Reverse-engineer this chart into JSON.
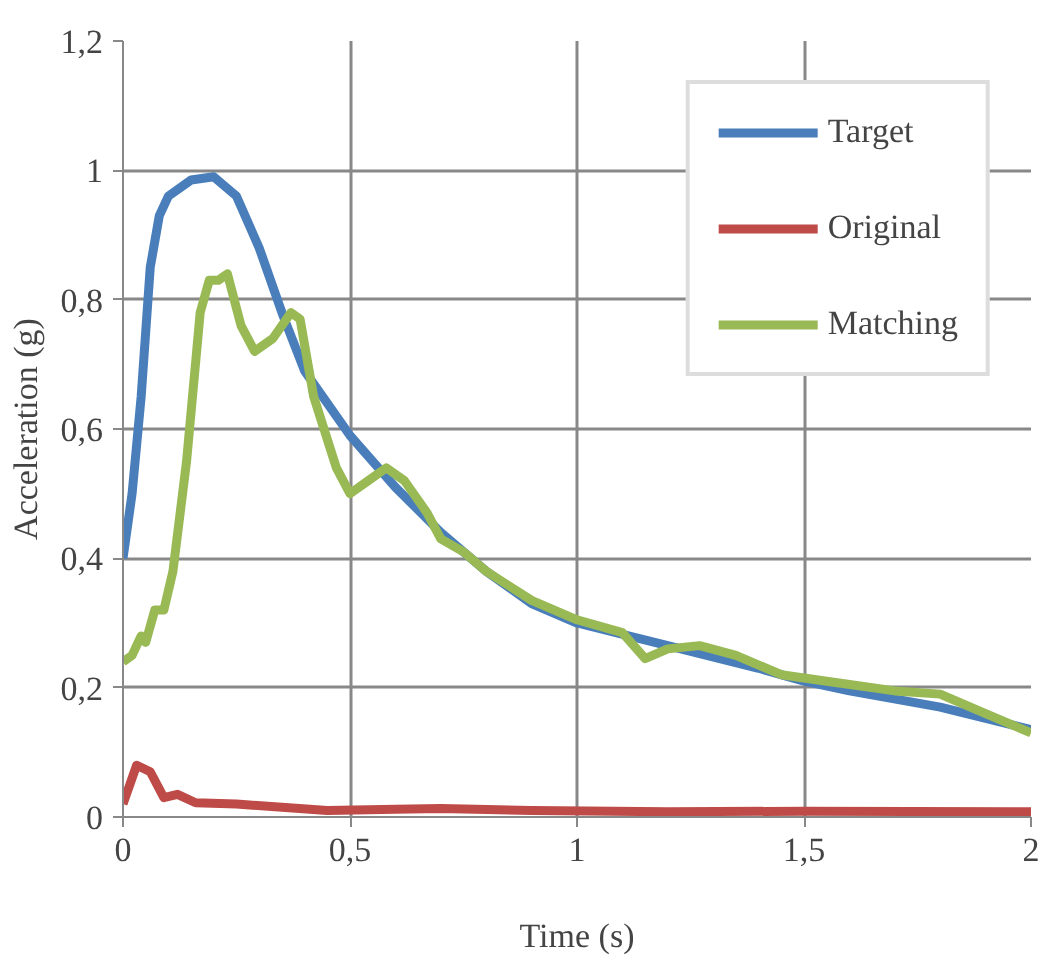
{
  "chart_data": {
    "type": "line",
    "xlabel": "Time (s)",
    "ylabel": "Acceleration (g)",
    "xlim": [
      0,
      2
    ],
    "ylim": [
      0,
      1.2
    ],
    "xticks": [
      {
        "value": 0,
        "label": "0"
      },
      {
        "value": 0.5,
        "label": "0,5"
      },
      {
        "value": 1,
        "label": "1"
      },
      {
        "value": 1.5,
        "label": "1,5"
      },
      {
        "value": 2,
        "label": "2"
      }
    ],
    "yticks": [
      {
        "value": 0,
        "label": "0"
      },
      {
        "value": 0.2,
        "label": "0,2"
      },
      {
        "value": 0.4,
        "label": "0,4"
      },
      {
        "value": 0.6,
        "label": "0,6"
      },
      {
        "value": 0.8,
        "label": "0,8"
      },
      {
        "value": 1,
        "label": "1"
      },
      {
        "value": 1.2,
        "label": "1,2"
      }
    ],
    "grid": true,
    "legend": "top right",
    "marker": "none",
    "line_style": "solid",
    "series": [
      {
        "name": "Target",
        "color": "#4a7ebb",
        "x": [
          0,
          0.02,
          0.04,
          0.06,
          0.08,
          0.1,
          0.15,
          0.2,
          0.25,
          0.3,
          0.35,
          0.4,
          0.5,
          0.6,
          0.7,
          0.8,
          0.9,
          1.0,
          1.2,
          1.4,
          1.5,
          1.6,
          1.8,
          2.0
        ],
        "values": [
          0.4,
          0.5,
          0.65,
          0.85,
          0.93,
          0.96,
          0.985,
          0.99,
          0.96,
          0.88,
          0.78,
          0.69,
          0.59,
          0.51,
          0.44,
          0.38,
          0.33,
          0.3,
          0.265,
          0.23,
          0.21,
          0.195,
          0.17,
          0.135
        ]
      },
      {
        "name": "Original",
        "color": "#be4b48",
        "x": [
          0,
          0.03,
          0.06,
          0.09,
          0.12,
          0.16,
          0.25,
          0.35,
          0.45,
          0.6,
          0.7,
          0.9,
          1.2,
          1.5,
          2.0
        ],
        "values": [
          0.02,
          0.08,
          0.07,
          0.03,
          0.035,
          0.022,
          0.02,
          0.015,
          0.01,
          0.012,
          0.013,
          0.01,
          0.008,
          0.009,
          0.008
        ]
      },
      {
        "name": "Matching",
        "color": "#98b954",
        "x": [
          0,
          0.02,
          0.04,
          0.05,
          0.07,
          0.09,
          0.11,
          0.14,
          0.17,
          0.19,
          0.21,
          0.23,
          0.26,
          0.29,
          0.33,
          0.37,
          0.39,
          0.42,
          0.47,
          0.5,
          0.54,
          0.58,
          0.62,
          0.67,
          0.7,
          0.75,
          0.8,
          0.9,
          1.0,
          1.1,
          1.15,
          1.2,
          1.27,
          1.35,
          1.45,
          1.55,
          1.7,
          1.8,
          1.9,
          2.0
        ],
        "values": [
          0.24,
          0.25,
          0.28,
          0.27,
          0.32,
          0.32,
          0.38,
          0.55,
          0.78,
          0.83,
          0.83,
          0.84,
          0.76,
          0.72,
          0.74,
          0.78,
          0.77,
          0.65,
          0.54,
          0.5,
          0.52,
          0.54,
          0.52,
          0.47,
          0.43,
          0.41,
          0.38,
          0.335,
          0.305,
          0.285,
          0.245,
          0.26,
          0.265,
          0.25,
          0.22,
          0.21,
          0.195,
          0.19,
          0.16,
          0.13
        ]
      }
    ]
  }
}
